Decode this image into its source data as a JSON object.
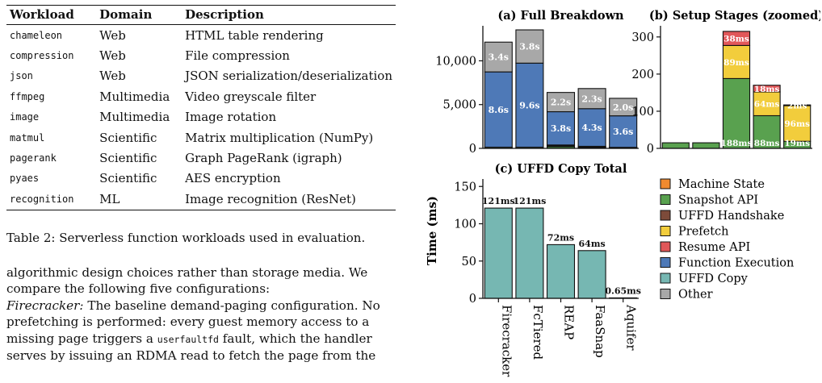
{
  "table": {
    "headers": [
      "Workload",
      "Domain",
      "Description"
    ],
    "rows": [
      [
        "chameleon",
        "Web",
        "HTML table rendering"
      ],
      [
        "compression",
        "Web",
        "File compression"
      ],
      [
        "json",
        "Web",
        "JSON serialization/deserialization"
      ],
      [
        "ffmpeg",
        "Multimedia",
        "Video greyscale filter"
      ],
      [
        "image",
        "Multimedia",
        "Image rotation"
      ],
      [
        "matmul",
        "Scientific",
        "Matrix multiplication (NumPy)"
      ],
      [
        "pagerank",
        "Scientific",
        "Graph PageRank (igraph)"
      ],
      [
        "pyaes",
        "Scientific",
        "AES encryption"
      ],
      [
        "recognition",
        "ML",
        "Image recognition (ResNet)"
      ]
    ],
    "caption": "Table 2: Serverless function workloads used in evaluation."
  },
  "paragraph": {
    "line1": "algorithmic design choices rather than storage media. We",
    "line2": "compare the following five configurations:",
    "line3_term": "Firecracker:",
    "line3_rest": " The baseline demand-paging configuration. No",
    "line4": "prefetching is performed: every guest memory access to a",
    "line5_pre": "missing page triggers a ",
    "line5_code": "userfaultfd",
    "line5_post": " fault, which the handler",
    "line6": "serves by issuing an RDMA read to fetch the page from the"
  },
  "figure": {
    "ylabel": "Time (ms)",
    "colors": {
      "Machine State": "#f08a2e",
      "Snapshot API": "#59a14f",
      "UFFD Handshake": "#7d4b3a",
      "Prefetch": "#f2cd3c",
      "Resume API": "#e15759",
      "Function Execution": "#4e79b7",
      "UFFD Copy": "#76b7b2",
      "Other": "#a8a8a8"
    },
    "legend": [
      "Machine State",
      "Snapshot API",
      "UFFD Handshake",
      "Prefetch",
      "Resume API",
      "Function Execution",
      "UFFD Copy",
      "Other"
    ],
    "categories": [
      "Firecracker",
      "FcTiered",
      "REAP",
      "FaaSnap",
      "Aquifer"
    ]
  },
  "chart_data": [
    {
      "type": "bar",
      "title": "(a) Full Breakdown",
      "categories": [
        "Firecracker",
        "FcTiered",
        "REAP",
        "FaaSnap",
        "Aquifer"
      ],
      "stacked": true,
      "ylim": [
        0,
        14000
      ],
      "yticks": [
        0,
        5000,
        10000
      ],
      "ytick_labels": [
        "0",
        "5,000",
        "10,000"
      ],
      "series": [
        {
          "name": "Snapshot API",
          "values": [
            15,
            15,
            188,
            88,
            19
          ]
        },
        {
          "name": "Prefetch",
          "values": [
            0,
            0,
            89,
            64,
            96
          ]
        },
        {
          "name": "Resume API",
          "values": [
            0,
            0,
            38,
            18,
            2
          ]
        },
        {
          "name": "UFFD Copy",
          "values": [
            121,
            121,
            72,
            64,
            0.65
          ]
        },
        {
          "name": "Function Execution",
          "values": [
            8600,
            9600,
            3800,
            4300,
            3600
          ]
        },
        {
          "name": "Other",
          "values": [
            3400,
            3800,
            2200,
            2300,
            2000
          ]
        }
      ],
      "labels": {
        "Function Execution": [
          "8.6s",
          "9.6s",
          "3.8s",
          "4.3s",
          "3.6s"
        ],
        "Other": [
          "3.4s",
          "3.8s",
          "2.2s",
          "2.3s",
          "2.0s"
        ]
      }
    },
    {
      "type": "bar",
      "title": "(b) Setup Stages (zoomed)",
      "categories": [
        "Firecracker",
        "FcTiered",
        "REAP",
        "FaaSnap",
        "Aquifer"
      ],
      "stacked": true,
      "ylim": [
        0,
        330
      ],
      "yticks": [
        0,
        100,
        200,
        300
      ],
      "series": [
        {
          "name": "Snapshot API",
          "values": [
            15,
            15,
            188,
            88,
            19
          ]
        },
        {
          "name": "Prefetch",
          "values": [
            0,
            0,
            89,
            64,
            96
          ]
        },
        {
          "name": "Resume API",
          "values": [
            0,
            0,
            38,
            18,
            2
          ]
        }
      ],
      "labels": {
        "Snapshot API": [
          "",
          "",
          "188ms",
          "88ms",
          "19ms"
        ],
        "Prefetch": [
          "",
          "",
          "89ms",
          "64ms",
          "96ms"
        ],
        "Resume API": [
          "",
          "",
          "38ms",
          "18ms",
          "2ms"
        ]
      }
    },
    {
      "type": "bar",
      "title": "(c) UFFD Copy Total",
      "categories": [
        "Firecracker",
        "FcTiered",
        "REAP",
        "FaaSnap",
        "Aquifer"
      ],
      "ylim": [
        0,
        160
      ],
      "yticks": [
        0,
        50,
        100,
        150
      ],
      "series": [
        {
          "name": "UFFD Copy",
          "values": [
            121,
            121,
            72,
            64,
            0.65
          ]
        }
      ],
      "labels": [
        "121ms",
        "121ms",
        "72ms",
        "64ms",
        "0.65ms"
      ]
    }
  ]
}
